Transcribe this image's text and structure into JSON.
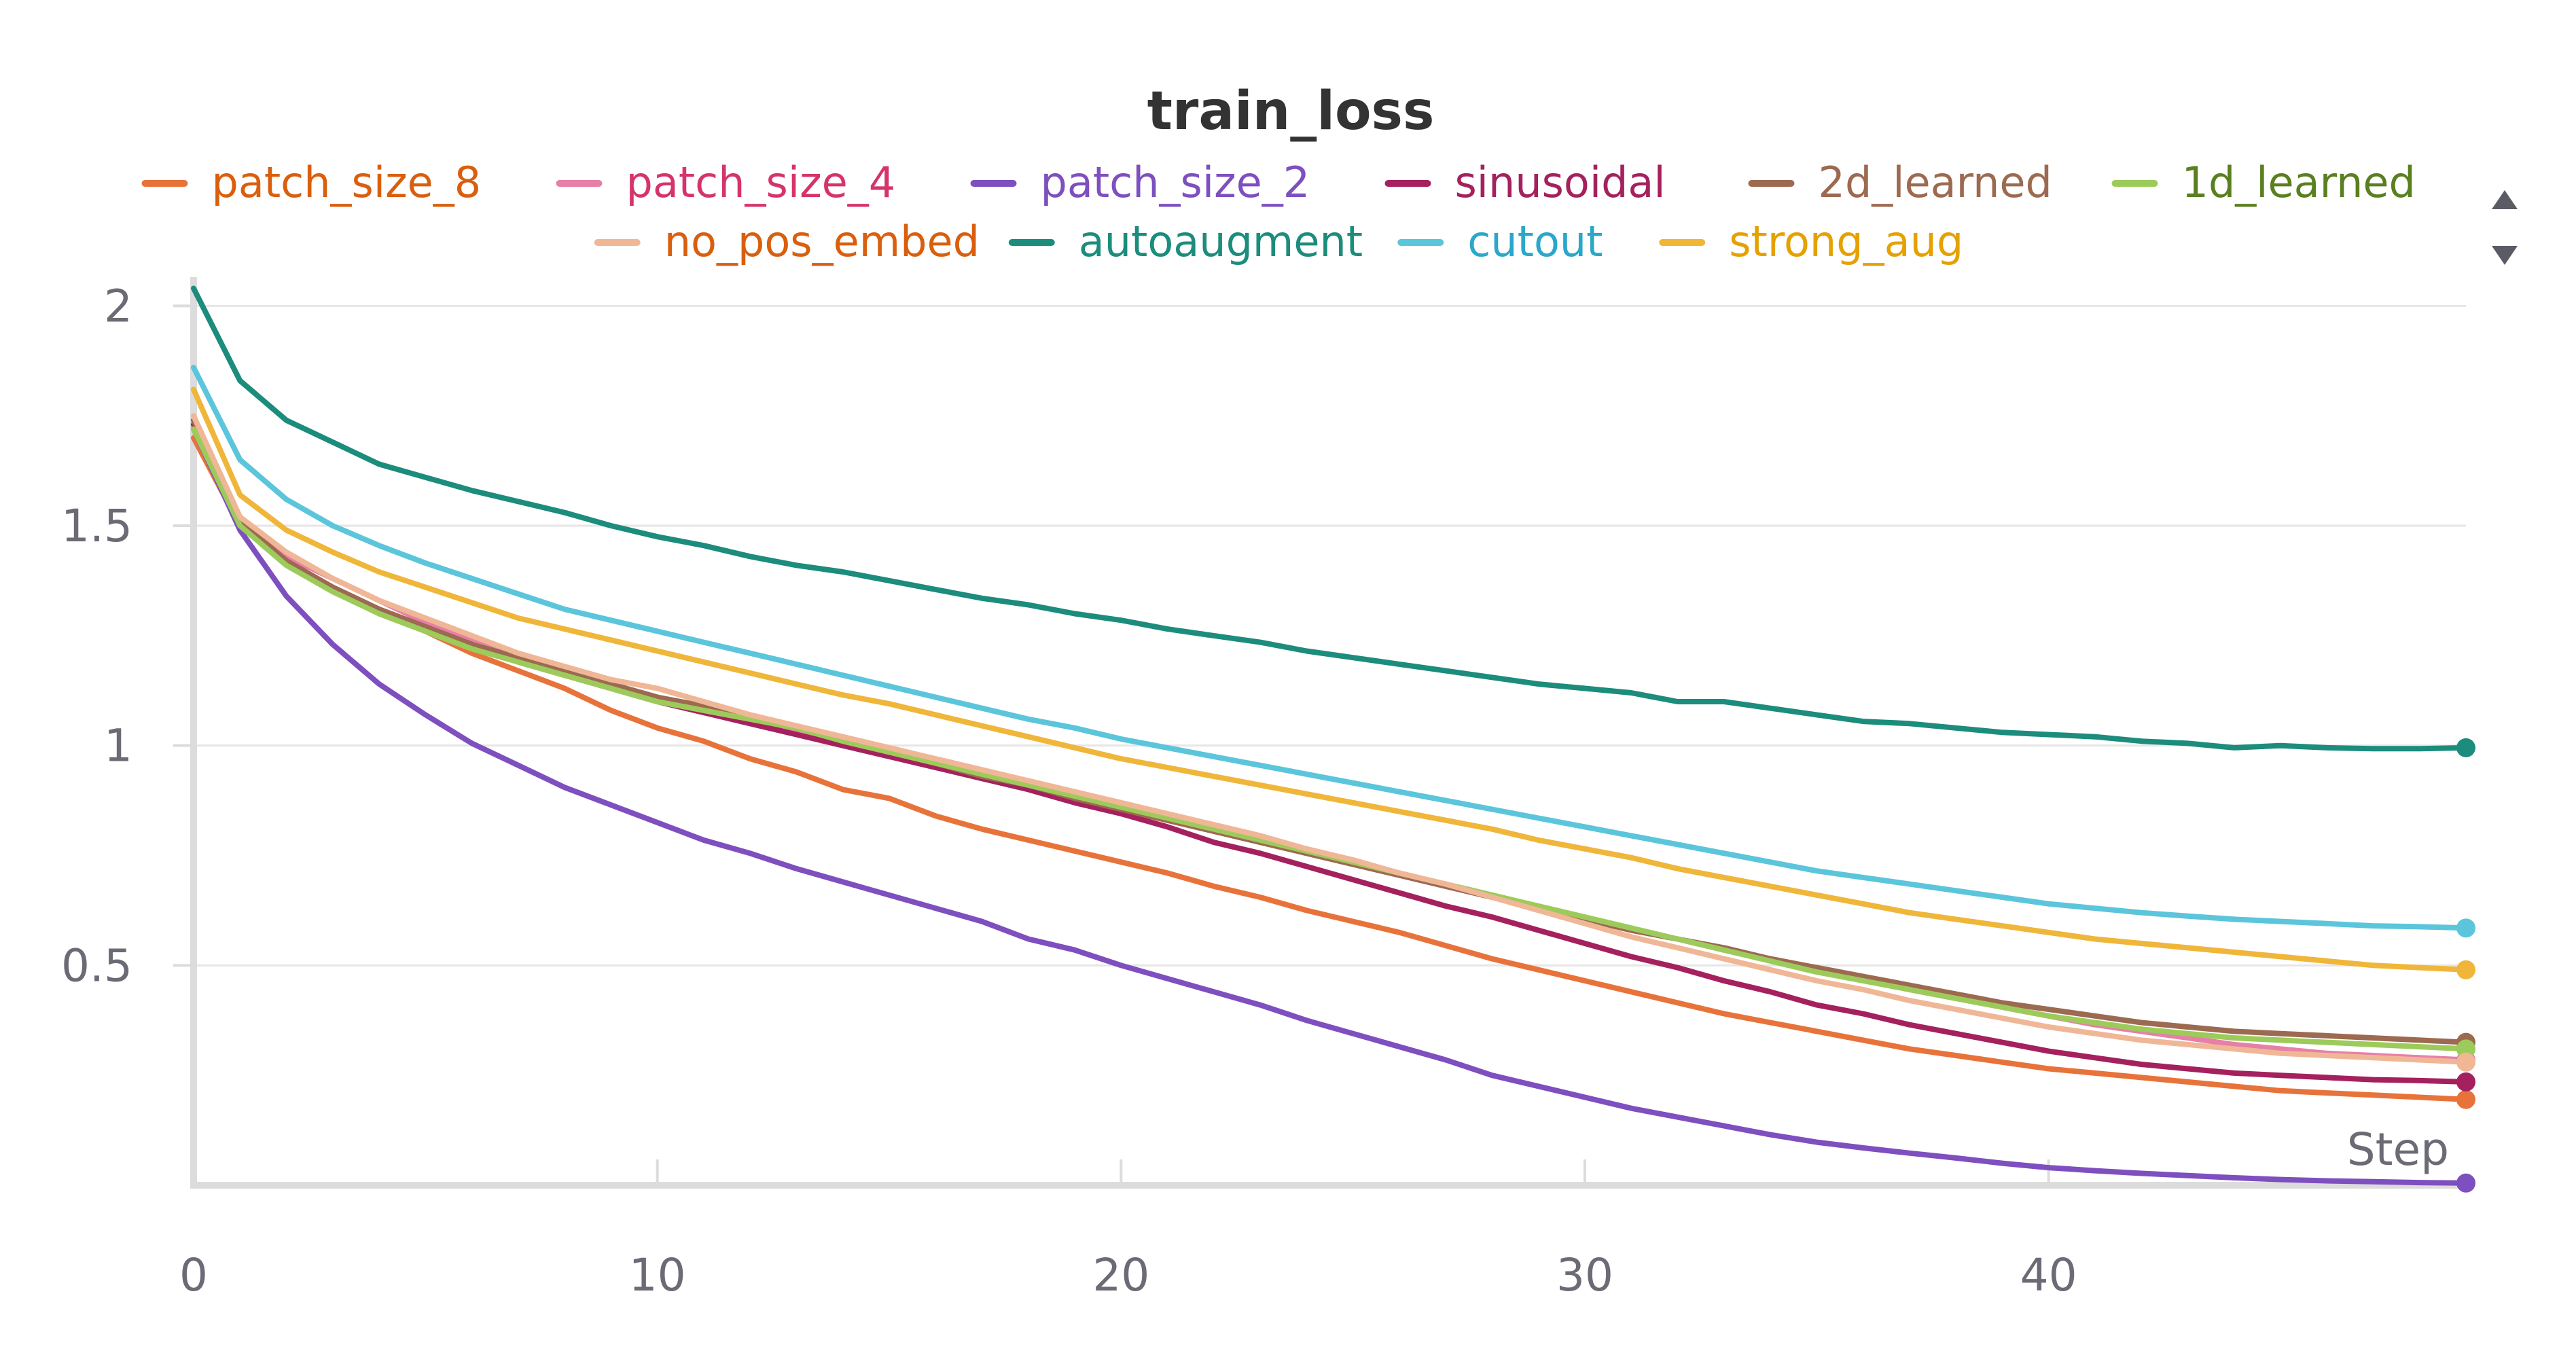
{
  "chart_data": {
    "type": "line",
    "title": "train_loss",
    "xlabel": "Step",
    "ylabel": "",
    "xlim": [
      0,
      49
    ],
    "ylim": [
      0,
      2.05
    ],
    "x_ticks": [
      0,
      10,
      20,
      30,
      40
    ],
    "y_ticks": [
      0.5,
      1,
      1.5,
      2
    ],
    "x_tick_labels": [
      "0",
      "10",
      "20",
      "30",
      "40"
    ],
    "y_tick_labels": [
      "0.5",
      "1",
      "1.5",
      "2"
    ],
    "grid": true,
    "legend_position": "top",
    "x": [
      0,
      1,
      2,
      3,
      4,
      5,
      6,
      7,
      8,
      9,
      10,
      11,
      12,
      13,
      14,
      15,
      16,
      17,
      18,
      19,
      20,
      21,
      22,
      23,
      24,
      25,
      26,
      27,
      28,
      29,
      30,
      31,
      32,
      33,
      34,
      35,
      36,
      37,
      38,
      39,
      40,
      41,
      42,
      43,
      44,
      45,
      46,
      47,
      48,
      49
    ],
    "series": [
      {
        "name": "patch_size_8",
        "color": "#e8733a",
        "text_color": "#d95f0e",
        "values": [
          1.7,
          1.5,
          1.42,
          1.36,
          1.3,
          1.26,
          1.21,
          1.17,
          1.13,
          1.08,
          1.04,
          1.01,
          0.97,
          0.94,
          0.9,
          0.88,
          0.84,
          0.81,
          0.785,
          0.76,
          0.735,
          0.71,
          0.68,
          0.655,
          0.625,
          0.6,
          0.575,
          0.545,
          0.515,
          0.49,
          0.465,
          0.44,
          0.415,
          0.39,
          0.37,
          0.35,
          0.33,
          0.31,
          0.295,
          0.28,
          0.265,
          0.255,
          0.245,
          0.235,
          0.225,
          0.215,
          0.21,
          0.205,
          0.2,
          0.195
        ]
      },
      {
        "name": "patch_size_4",
        "color": "#e77fa7",
        "text_color": "#d6336c",
        "values": [
          1.74,
          1.51,
          1.43,
          1.38,
          1.33,
          1.28,
          1.24,
          1.2,
          1.17,
          1.14,
          1.11,
          1.08,
          1.06,
          1.03,
          1.0,
          0.98,
          0.95,
          0.93,
          0.905,
          0.88,
          0.855,
          0.83,
          0.805,
          0.78,
          0.755,
          0.73,
          0.705,
          0.68,
          0.655,
          0.63,
          0.605,
          0.58,
          0.56,
          0.535,
          0.515,
          0.49,
          0.47,
          0.445,
          0.425,
          0.405,
          0.385,
          0.365,
          0.35,
          0.335,
          0.32,
          0.31,
          0.3,
          0.295,
          0.29,
          0.285
        ]
      },
      {
        "name": "patch_size_2",
        "color": "#7e4fbf",
        "text_color": "#7e4fbf",
        "values": [
          1.72,
          1.49,
          1.34,
          1.23,
          1.14,
          1.07,
          1.005,
          0.955,
          0.905,
          0.865,
          0.825,
          0.785,
          0.755,
          0.72,
          0.69,
          0.66,
          0.63,
          0.6,
          0.56,
          0.535,
          0.5,
          0.47,
          0.44,
          0.41,
          0.375,
          0.345,
          0.315,
          0.285,
          0.25,
          0.225,
          0.2,
          0.175,
          0.155,
          0.135,
          0.115,
          0.098,
          0.085,
          0.073,
          0.062,
          0.05,
          0.04,
          0.033,
          0.027,
          0.022,
          0.017,
          0.013,
          0.01,
          0.008,
          0.006,
          0.005
        ]
      },
      {
        "name": "sinusoidal",
        "color": "#a4215e",
        "text_color": "#a4215e",
        "values": [
          1.73,
          1.51,
          1.42,
          1.36,
          1.31,
          1.27,
          1.23,
          1.19,
          1.16,
          1.13,
          1.1,
          1.075,
          1.05,
          1.025,
          1.0,
          0.975,
          0.95,
          0.925,
          0.9,
          0.87,
          0.845,
          0.815,
          0.78,
          0.755,
          0.725,
          0.695,
          0.665,
          0.635,
          0.61,
          0.58,
          0.55,
          0.52,
          0.495,
          0.465,
          0.44,
          0.41,
          0.39,
          0.365,
          0.345,
          0.325,
          0.305,
          0.29,
          0.275,
          0.265,
          0.255,
          0.25,
          0.245,
          0.24,
          0.238,
          0.235
        ]
      },
      {
        "name": "2d_learned",
        "color": "#9c6a50",
        "text_color": "#9c6a50",
        "values": [
          1.74,
          1.51,
          1.42,
          1.36,
          1.31,
          1.27,
          1.23,
          1.2,
          1.17,
          1.14,
          1.11,
          1.09,
          1.065,
          1.04,
          1.01,
          0.985,
          0.96,
          0.93,
          0.91,
          0.88,
          0.855,
          0.83,
          0.805,
          0.78,
          0.755,
          0.73,
          0.705,
          0.68,
          0.655,
          0.63,
          0.605,
          0.58,
          0.56,
          0.54,
          0.515,
          0.495,
          0.475,
          0.455,
          0.435,
          0.415,
          0.4,
          0.385,
          0.37,
          0.36,
          0.35,
          0.345,
          0.34,
          0.335,
          0.33,
          0.325
        ]
      },
      {
        "name": "1d_learned",
        "color": "#9dcb5b",
        "text_color": "#5a7f20",
        "values": [
          1.72,
          1.5,
          1.41,
          1.35,
          1.3,
          1.26,
          1.22,
          1.19,
          1.16,
          1.13,
          1.1,
          1.08,
          1.06,
          1.04,
          1.01,
          0.985,
          0.96,
          0.935,
          0.91,
          0.885,
          0.86,
          0.835,
          0.81,
          0.785,
          0.76,
          0.735,
          0.71,
          0.685,
          0.66,
          0.635,
          0.61,
          0.585,
          0.56,
          0.535,
          0.51,
          0.485,
          0.465,
          0.445,
          0.425,
          0.405,
          0.385,
          0.37,
          0.355,
          0.345,
          0.335,
          0.33,
          0.325,
          0.32,
          0.315,
          0.31
        ]
      },
      {
        "name": "no_pos_embed",
        "color": "#f0b797",
        "text_color": "#d95f0e",
        "values": [
          1.75,
          1.52,
          1.44,
          1.38,
          1.33,
          1.29,
          1.25,
          1.21,
          1.18,
          1.15,
          1.13,
          1.1,
          1.07,
          1.045,
          1.02,
          0.995,
          0.97,
          0.945,
          0.92,
          0.895,
          0.87,
          0.845,
          0.82,
          0.795,
          0.765,
          0.74,
          0.71,
          0.685,
          0.655,
          0.625,
          0.595,
          0.565,
          0.54,
          0.515,
          0.49,
          0.465,
          0.445,
          0.42,
          0.4,
          0.38,
          0.36,
          0.345,
          0.33,
          0.32,
          0.31,
          0.3,
          0.295,
          0.29,
          0.285,
          0.28
        ]
      },
      {
        "name": "autoaugment",
        "color": "#1c8c7c",
        "text_color": "#1c8c7c",
        "values": [
          2.04,
          1.83,
          1.74,
          1.69,
          1.64,
          1.61,
          1.58,
          1.555,
          1.53,
          1.5,
          1.475,
          1.455,
          1.43,
          1.41,
          1.395,
          1.375,
          1.355,
          1.335,
          1.32,
          1.3,
          1.285,
          1.265,
          1.25,
          1.235,
          1.215,
          1.2,
          1.185,
          1.17,
          1.155,
          1.14,
          1.13,
          1.12,
          1.1,
          1.1,
          1.085,
          1.07,
          1.055,
          1.05,
          1.04,
          1.03,
          1.025,
          1.02,
          1.01,
          1.005,
          0.995,
          1.0,
          0.995,
          0.993,
          0.993,
          0.995
        ]
      },
      {
        "name": "cutout",
        "color": "#5bc5db",
        "text_color": "#2aa7c9",
        "values": [
          1.86,
          1.65,
          1.56,
          1.5,
          1.455,
          1.415,
          1.38,
          1.345,
          1.31,
          1.285,
          1.26,
          1.235,
          1.21,
          1.185,
          1.16,
          1.135,
          1.11,
          1.085,
          1.06,
          1.04,
          1.015,
          0.995,
          0.975,
          0.955,
          0.935,
          0.915,
          0.895,
          0.875,
          0.855,
          0.835,
          0.815,
          0.795,
          0.775,
          0.755,
          0.735,
          0.715,
          0.7,
          0.685,
          0.67,
          0.655,
          0.64,
          0.63,
          0.62,
          0.612,
          0.605,
          0.6,
          0.595,
          0.59,
          0.588,
          0.585
        ]
      },
      {
        "name": "strong_aug",
        "color": "#efb63a",
        "text_color": "#e5a100",
        "values": [
          1.81,
          1.57,
          1.49,
          1.44,
          1.395,
          1.36,
          1.325,
          1.29,
          1.265,
          1.24,
          1.215,
          1.19,
          1.165,
          1.14,
          1.115,
          1.095,
          1.07,
          1.045,
          1.02,
          0.995,
          0.97,
          0.95,
          0.93,
          0.91,
          0.89,
          0.87,
          0.85,
          0.83,
          0.81,
          0.785,
          0.765,
          0.745,
          0.72,
          0.7,
          0.68,
          0.66,
          0.64,
          0.62,
          0.605,
          0.59,
          0.575,
          0.56,
          0.55,
          0.54,
          0.53,
          0.52,
          0.51,
          0.5,
          0.495,
          0.49
        ]
      }
    ]
  },
  "legend": {
    "nav_up_icon": "triangle-up-icon",
    "nav_down_icon": "triangle-down-icon"
  }
}
